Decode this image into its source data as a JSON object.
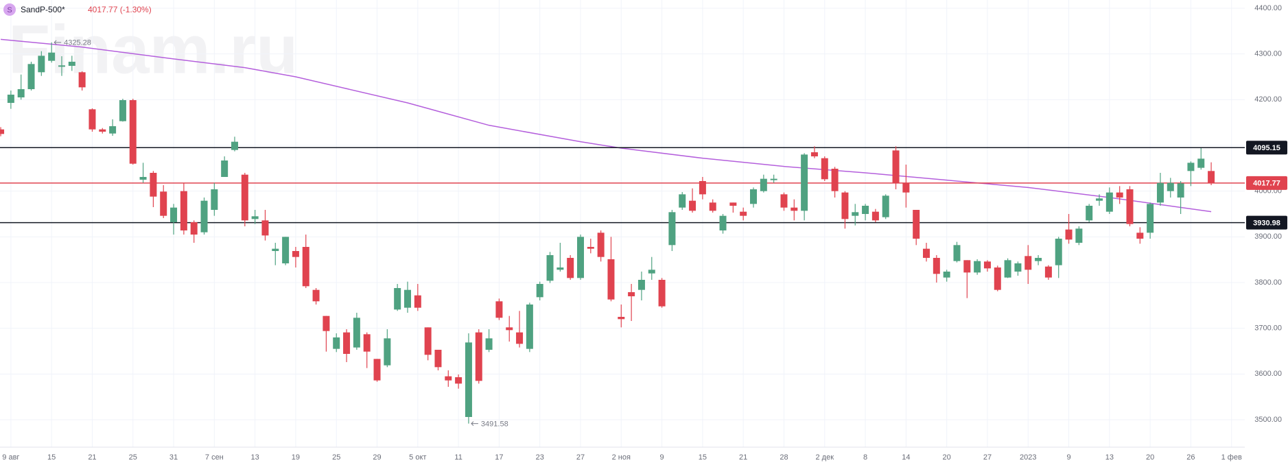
{
  "chart_data": {
    "type": "candlestick",
    "icon": "S",
    "title": "SandP-500*",
    "subtitle": "4017.77 (-1.30%)",
    "watermark": "Finam.ru",
    "up_color": "#4fa281",
    "down_color": "#e0434f",
    "categories": [
      null,
      "9 авг",
      null,
      null,
      null,
      "15",
      null,
      null,
      null,
      "21",
      null,
      null,
      null,
      "25",
      null,
      null,
      null,
      "31",
      null,
      null,
      null,
      "7 сен",
      null,
      null,
      null,
      "13",
      null,
      null,
      null,
      "19",
      null,
      null,
      null,
      "25",
      null,
      null,
      null,
      "29",
      null,
      null,
      null,
      "5 окт",
      null,
      null,
      null,
      "11",
      null,
      null,
      null,
      "17",
      null,
      null,
      null,
      "23",
      null,
      null,
      null,
      "27",
      null,
      null,
      null,
      "2 ноя",
      null,
      null,
      null,
      "9",
      null,
      null,
      null,
      "15",
      null,
      null,
      null,
      "21",
      null,
      null,
      null,
      "28",
      null,
      null,
      null,
      "2 дек",
      null,
      null,
      null,
      "8",
      null,
      null,
      null,
      "14",
      null,
      null,
      null,
      "20",
      null,
      null,
      null,
      "27",
      null,
      null,
      null,
      "2023",
      null,
      null,
      null,
      "9",
      null,
      null,
      null,
      "13",
      null,
      null,
      null,
      "20",
      null,
      null,
      null,
      "26",
      null,
      null,
      null,
      "1 фев"
    ],
    "open": [
      4135,
      4193,
      4205,
      4223,
      4260,
      4285,
      4272,
      4274,
      4260,
      4179,
      4135,
      4126,
      4153,
      4199,
      4025,
      4040,
      3999,
      3932,
      4000,
      3932,
      3910,
      3959,
      4031,
      4090,
      4036,
      3939,
      3936,
      3869,
      3842,
      3869,
      3878,
      3784,
      3727,
      3655,
      3691,
      3658,
      3687,
      3633,
      3619,
      3741,
      3745,
      3772,
      3702,
      3653,
      3595,
      3593,
      3506,
      3691,
      3653,
      3759,
      3702,
      3691,
      3655,
      3768,
      3804,
      3828,
      3854,
      3810,
      3878,
      3909,
      3851,
      3725,
      3779,
      3784,
      3820,
      3806,
      3882,
      3964,
      3979,
      4022,
      3975,
      3914,
      3975,
      3955,
      3972,
      4000,
      4024,
      3993,
      3964,
      3957,
      4085,
      4072,
      4049,
      3997,
      3946,
      3950,
      3955,
      3943,
      4089,
      4018,
      3959,
      3874,
      3854,
      3811,
      3847,
      3849,
      3822,
      3846,
      3833,
      3811,
      3824,
      3858,
      3847,
      3835,
      3838,
      3916,
      3887,
      3936,
      3979,
      3955,
      3997,
      4004,
      3909,
      3909,
      3975,
      4000,
      3986,
      4044,
      4051,
      4044,
      null,
      null
    ],
    "high": [
      4140,
      4220,
      4255,
      4283,
      4306,
      4325.28,
      4295,
      4296,
      4262,
      4181,
      4138,
      4157,
      4202,
      4202,
      4062,
      4044,
      4013,
      3972,
      4018,
      3936,
      3986,
      4018,
      4076,
      4119,
      4040,
      3959,
      3959,
      3887,
      3900,
      3878,
      3905,
      3788,
      3727,
      3689,
      3698,
      3734,
      3691,
      3633,
      3698,
      3797,
      3802,
      3797,
      3702,
      3653,
      3608,
      3599,
      3689,
      3698,
      3698,
      3765,
      3727,
      3738,
      3756,
      3802,
      3867,
      3887,
      3860,
      3905,
      3896,
      3914,
      3900,
      3752,
      3797,
      3824,
      3856,
      3810,
      3959,
      3998,
      4006,
      4031,
      3982,
      3950,
      3975,
      3964,
      4008,
      4036,
      4036,
      3997,
      3982,
      4083,
      4098,
      4076,
      4053,
      4000,
      3972,
      3972,
      3961,
      3993,
      4098,
      4058,
      3959,
      3887,
      3860,
      3828,
      3889,
      3849,
      3851,
      3849,
      3837,
      3853,
      3846,
      3882,
      3860,
      3838,
      3900,
      3950,
      3923,
      3972,
      3993,
      4008,
      4011,
      4011,
      3921,
      3975,
      4040,
      4029,
      4022,
      4065,
      4094,
      4063,
      null,
      null
    ],
    "low": [
      4120,
      4180,
      4200,
      4220,
      4252,
      4281,
      4252,
      4263,
      4220,
      4130,
      4126,
      4121,
      4152,
      4058,
      4018,
      3965,
      3941,
      3905,
      3905,
      3887,
      3905,
      3946,
      4031,
      4087,
      3923,
      3928,
      3892,
      3838,
      3838,
      3833,
      3788,
      3752,
      3649,
      3648,
      3626,
      3653,
      3613,
      3583,
      3615,
      3738,
      3734,
      3738,
      3630,
      3608,
      3572,
      3568,
      3491.58,
      3579,
      3648,
      3718,
      3671,
      3658,
      3648,
      3761,
      3799,
      3824,
      3806,
      3806,
      3864,
      3846,
      3759,
      3702,
      3716,
      3761,
      3806,
      3745,
      3869,
      3959,
      3953,
      3982,
      3953,
      3907,
      3953,
      3936,
      3964,
      3997,
      4018,
      3957,
      3936,
      3936,
      4072,
      4022,
      3986,
      3918,
      3925,
      3936,
      3932,
      3939,
      4004,
      3964,
      3882,
      3846,
      3800,
      3802,
      3844,
      3766,
      3817,
      3824,
      3781,
      3810,
      3815,
      3797,
      3838,
      3806,
      3810,
      3885,
      3882,
      3932,
      3968,
      3950,
      3972,
      3923,
      3885,
      3896,
      3968,
      3986,
      3950,
      4011,
      4047,
      4013,
      null,
      null
    ],
    "close": [
      4125,
      4211,
      4223,
      4278,
      4296,
      4303,
      4275,
      4283,
      4227,
      4135,
      4130,
      4142,
      4199,
      4060,
      4031,
      3988,
      3946,
      3964,
      3914,
      3905,
      3979,
      4004,
      4067,
      4108,
      3936,
      3945,
      3903,
      3874,
      3900,
      3856,
      3792,
      3759,
      3694,
      3680,
      3644,
      3723,
      3649,
      3586,
      3678,
      3788,
      3784,
      3745,
      3642,
      3615,
      3586,
      3579,
      3669,
      3585,
      3678,
      3723,
      3696,
      3666,
      3752,
      3797,
      3860,
      3833,
      3810,
      3900,
      3874,
      3856,
      3763,
      3720,
      3770,
      3806,
      3828,
      3748,
      3954,
      3993,
      3957,
      3993,
      3957,
      3946,
      3968,
      3946,
      4004,
      4027,
      4027,
      3964,
      3957,
      4080,
      4076,
      4026,
      4000,
      3939,
      3954,
      3968,
      3936,
      3990,
      4018,
      3997,
      3896,
      3854,
      3819,
      3824,
      3882,
      3822,
      3847,
      3831,
      3784,
      3849,
      3842,
      3828,
      3854,
      3811,
      3896,
      3894,
      3918,
      3968,
      3984,
      3997,
      3986,
      3928,
      3896,
      3972,
      4018,
      4018,
      4017,
      4062,
      4071,
      4017.77,
      null,
      null
    ],
    "ma": {
      "color": "#b45fdc",
      "x": [
        0,
        8,
        16,
        24,
        29,
        40,
        48,
        57,
        61,
        69,
        77,
        85,
        93,
        101,
        109,
        119
      ],
      "values": [
        4332,
        4315,
        4292,
        4270,
        4250,
        4193,
        4144,
        4108,
        4094,
        4072,
        4054,
        4040,
        4024,
        4008,
        3986,
        3955
      ]
    },
    "levels": [
      {
        "value": 4095.15,
        "color": "#131722"
      },
      {
        "value": 4017.77,
        "color": "#e0434f"
      },
      {
        "value": 3930.98,
        "color": "#131722"
      }
    ],
    "annotations": [
      "4325.28",
      "3491.58"
    ],
    "xlim": [
      -0.07,
      122.3
    ],
    "ylim": [
      3440,
      4418
    ],
    "yticks": [
      {
        "value": 3500,
        "label": "3500.00"
      },
      {
        "value": 3600,
        "label": "3600.00"
      },
      {
        "value": 3700,
        "label": "3700.00"
      },
      {
        "value": 3800,
        "label": "3800.00"
      },
      {
        "value": 3900,
        "label": "3900.00"
      },
      {
        "value": 4000,
        "label": "4000.00"
      },
      {
        "value": 4100,
        "label": "4100.00"
      },
      {
        "value": 4200,
        "label": "4200.00"
      },
      {
        "value": 4300,
        "label": "4300.00"
      },
      {
        "value": 4400,
        "label": "4400.00"
      }
    ],
    "grid": true
  }
}
